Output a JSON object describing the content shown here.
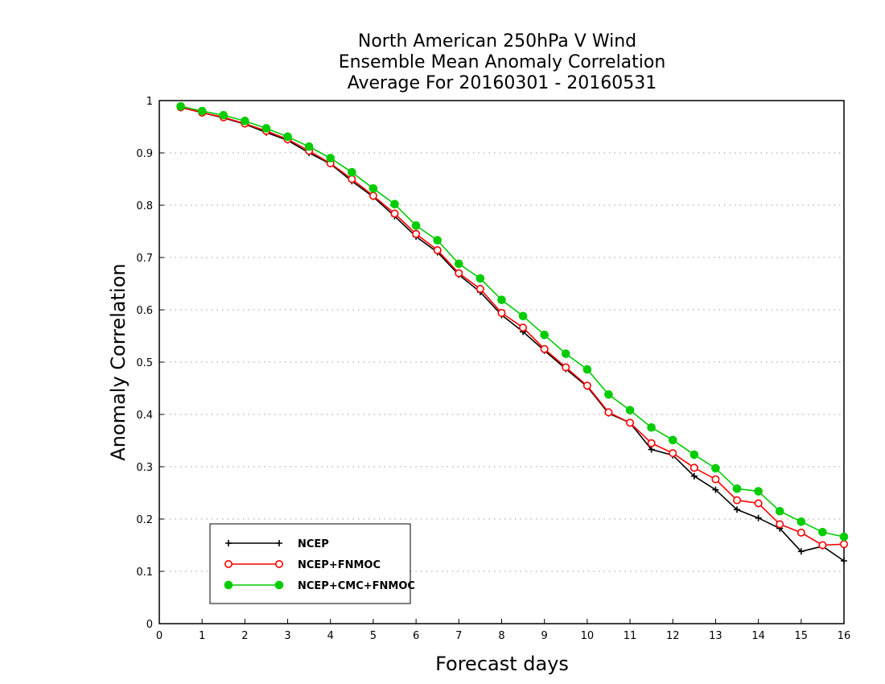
{
  "chart_data": {
    "type": "line",
    "title": [
      "North American 250hPa V Wind",
      "Ensemble Mean Anomaly Correlation",
      "Average For 20160301 - 20160531"
    ],
    "xlabel": "Forecast days",
    "ylabel": "Anomaly Correlation",
    "xlim": [
      0,
      16
    ],
    "ylim": [
      0,
      1
    ],
    "xticks": [
      "0",
      "1",
      "2",
      "3",
      "4",
      "5",
      "6",
      "7",
      "8",
      "9",
      "10",
      "11",
      "12",
      "13",
      "14",
      "15",
      "16"
    ],
    "yticks": [
      "0",
      "0.1",
      "0.2",
      "0.3",
      "0.4",
      "0.5",
      "0.6",
      "0.7",
      "0.8",
      "0.9",
      "1"
    ],
    "grid": "horizontal dotted",
    "legend_position": "bottom-left",
    "x": [
      0.5,
      1,
      1.5,
      2,
      2.5,
      3,
      3.5,
      4,
      4.5,
      5,
      5.5,
      6,
      6.5,
      7,
      7.5,
      8,
      8.5,
      9,
      9.5,
      10,
      10.5,
      11,
      11.5,
      12,
      12.5,
      13,
      13.5,
      14,
      14.5,
      15,
      15.5,
      16
    ],
    "series": [
      {
        "name": "NCEP",
        "color": "#000000",
        "marker": "plus",
        "values": [
          0.987,
          0.977,
          0.967,
          0.955,
          0.939,
          0.924,
          0.9,
          0.879,
          0.846,
          0.816,
          0.779,
          0.74,
          0.71,
          0.667,
          0.634,
          0.59,
          0.558,
          0.522,
          0.487,
          0.453,
          0.402,
          0.384,
          0.333,
          0.322,
          0.282,
          0.256,
          0.218,
          0.202,
          0.182,
          0.138,
          0.148,
          0.12
        ]
      },
      {
        "name": "NCEP+FNMOC",
        "color": "#ff0000",
        "marker": "open-circle",
        "values": [
          0.987,
          0.977,
          0.968,
          0.956,
          0.942,
          0.926,
          0.904,
          0.88,
          0.85,
          0.818,
          0.784,
          0.745,
          0.714,
          0.67,
          0.64,
          0.594,
          0.566,
          0.525,
          0.49,
          0.455,
          0.404,
          0.384,
          0.345,
          0.326,
          0.298,
          0.276,
          0.236,
          0.23,
          0.19,
          0.174,
          0.15,
          0.152
        ]
      },
      {
        "name": "NCEP+CMC+FNMOC",
        "color": "#00cc00",
        "marker": "filled-circle",
        "values": [
          0.989,
          0.98,
          0.972,
          0.961,
          0.947,
          0.931,
          0.912,
          0.89,
          0.863,
          0.832,
          0.802,
          0.761,
          0.733,
          0.688,
          0.66,
          0.619,
          0.588,
          0.552,
          0.516,
          0.486,
          0.438,
          0.408,
          0.375,
          0.351,
          0.323,
          0.297,
          0.258,
          0.253,
          0.215,
          0.195,
          0.175,
          0.166
        ]
      }
    ]
  }
}
